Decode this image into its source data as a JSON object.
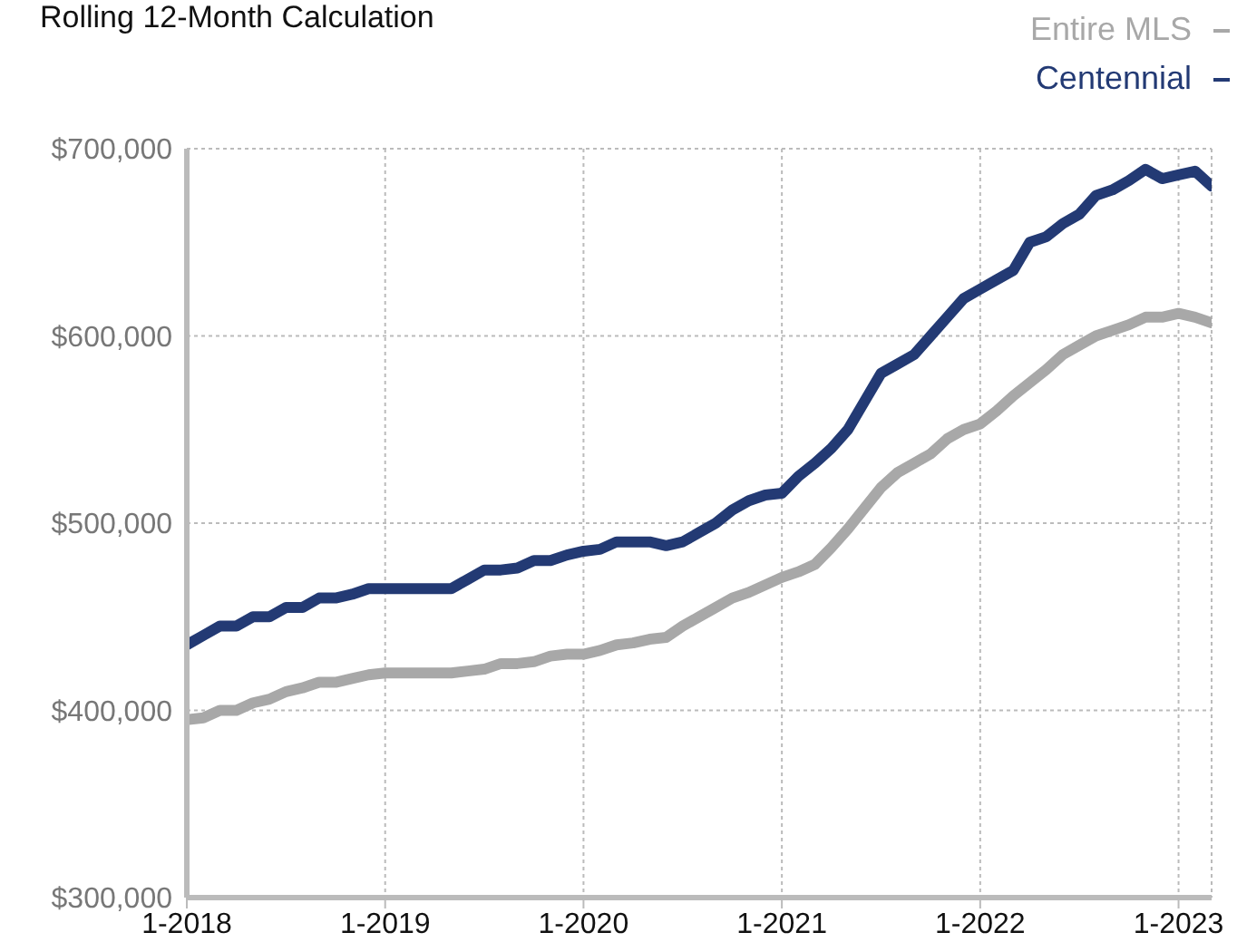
{
  "chart_data": {
    "type": "line",
    "title": "Rolling 12-Month Calculation",
    "x": [
      "2018-01",
      "2018-02",
      "2018-03",
      "2018-04",
      "2018-05",
      "2018-06",
      "2018-07",
      "2018-08",
      "2018-09",
      "2018-10",
      "2018-11",
      "2018-12",
      "2019-01",
      "2019-02",
      "2019-03",
      "2019-04",
      "2019-05",
      "2019-06",
      "2019-07",
      "2019-08",
      "2019-09",
      "2019-10",
      "2019-11",
      "2019-12",
      "2020-01",
      "2020-02",
      "2020-03",
      "2020-04",
      "2020-05",
      "2020-06",
      "2020-07",
      "2020-08",
      "2020-09",
      "2020-10",
      "2020-11",
      "2020-12",
      "2021-01",
      "2021-02",
      "2021-03",
      "2021-04",
      "2021-05",
      "2021-06",
      "2021-07",
      "2021-08",
      "2021-09",
      "2021-10",
      "2021-11",
      "2021-12",
      "2022-01",
      "2022-02",
      "2022-03",
      "2022-04",
      "2022-05",
      "2022-06",
      "2022-07",
      "2022-08",
      "2022-09",
      "2022-10",
      "2022-11",
      "2022-12",
      "2023-01",
      "2023-02",
      "2023-03"
    ],
    "series": [
      {
        "name": "Entire MLS",
        "color": "#a8a8a8",
        "values": [
          395000,
          396000,
          400000,
          400000,
          404000,
          406000,
          410000,
          412000,
          415000,
          415000,
          417000,
          419000,
          420000,
          420000,
          420000,
          420000,
          420000,
          421000,
          422000,
          425000,
          425000,
          426000,
          429000,
          430000,
          430000,
          432000,
          435000,
          436000,
          438000,
          439000,
          445000,
          450000,
          455000,
          460000,
          463000,
          467000,
          471000,
          474000,
          478000,
          487000,
          497000,
          508000,
          519000,
          527000,
          532000,
          537000,
          545000,
          550000,
          553000,
          560000,
          568000,
          575000,
          582000,
          590000,
          595000,
          600000,
          603000,
          606000,
          610000,
          610000,
          612000,
          610000,
          607000
        ]
      },
      {
        "name": "Centennial",
        "color": "#233a74",
        "values": [
          435000,
          440000,
          445000,
          445000,
          450000,
          450000,
          455000,
          455000,
          460000,
          460000,
          462000,
          465000,
          465000,
          465000,
          465000,
          465000,
          465000,
          470000,
          475000,
          475000,
          476000,
          480000,
          480000,
          483000,
          485000,
          486000,
          490000,
          490000,
          490000,
          488000,
          490000,
          495000,
          500000,
          507000,
          512000,
          515000,
          516000,
          525000,
          532000,
          540000,
          550000,
          565000,
          580000,
          585000,
          590000,
          600000,
          610000,
          620000,
          625000,
          630000,
          635000,
          650000,
          653000,
          660000,
          665000,
          675000,
          678000,
          683000,
          689000,
          684000,
          686000,
          688000,
          680000
        ]
      }
    ],
    "xlim": [
      "2018-01",
      "2023-03"
    ],
    "xticks": [
      {
        "value": "2018-01",
        "label": "1-2018"
      },
      {
        "value": "2019-01",
        "label": "1-2019"
      },
      {
        "value": "2020-01",
        "label": "1-2020"
      },
      {
        "value": "2021-01",
        "label": "1-2021"
      },
      {
        "value": "2022-01",
        "label": "1-2022"
      },
      {
        "value": "2023-01",
        "label": "1-2023"
      }
    ],
    "ylim": [
      300000,
      700000
    ],
    "yticks": [
      {
        "value": 300000,
        "label": "$300,000"
      },
      {
        "value": 400000,
        "label": "$400,000"
      },
      {
        "value": 500000,
        "label": "$500,000"
      },
      {
        "value": 600000,
        "label": "$600,000"
      },
      {
        "value": 700000,
        "label": "$700,000"
      }
    ],
    "grid": true,
    "legend": "top right",
    "marker": "none",
    "line_style": "solid"
  }
}
